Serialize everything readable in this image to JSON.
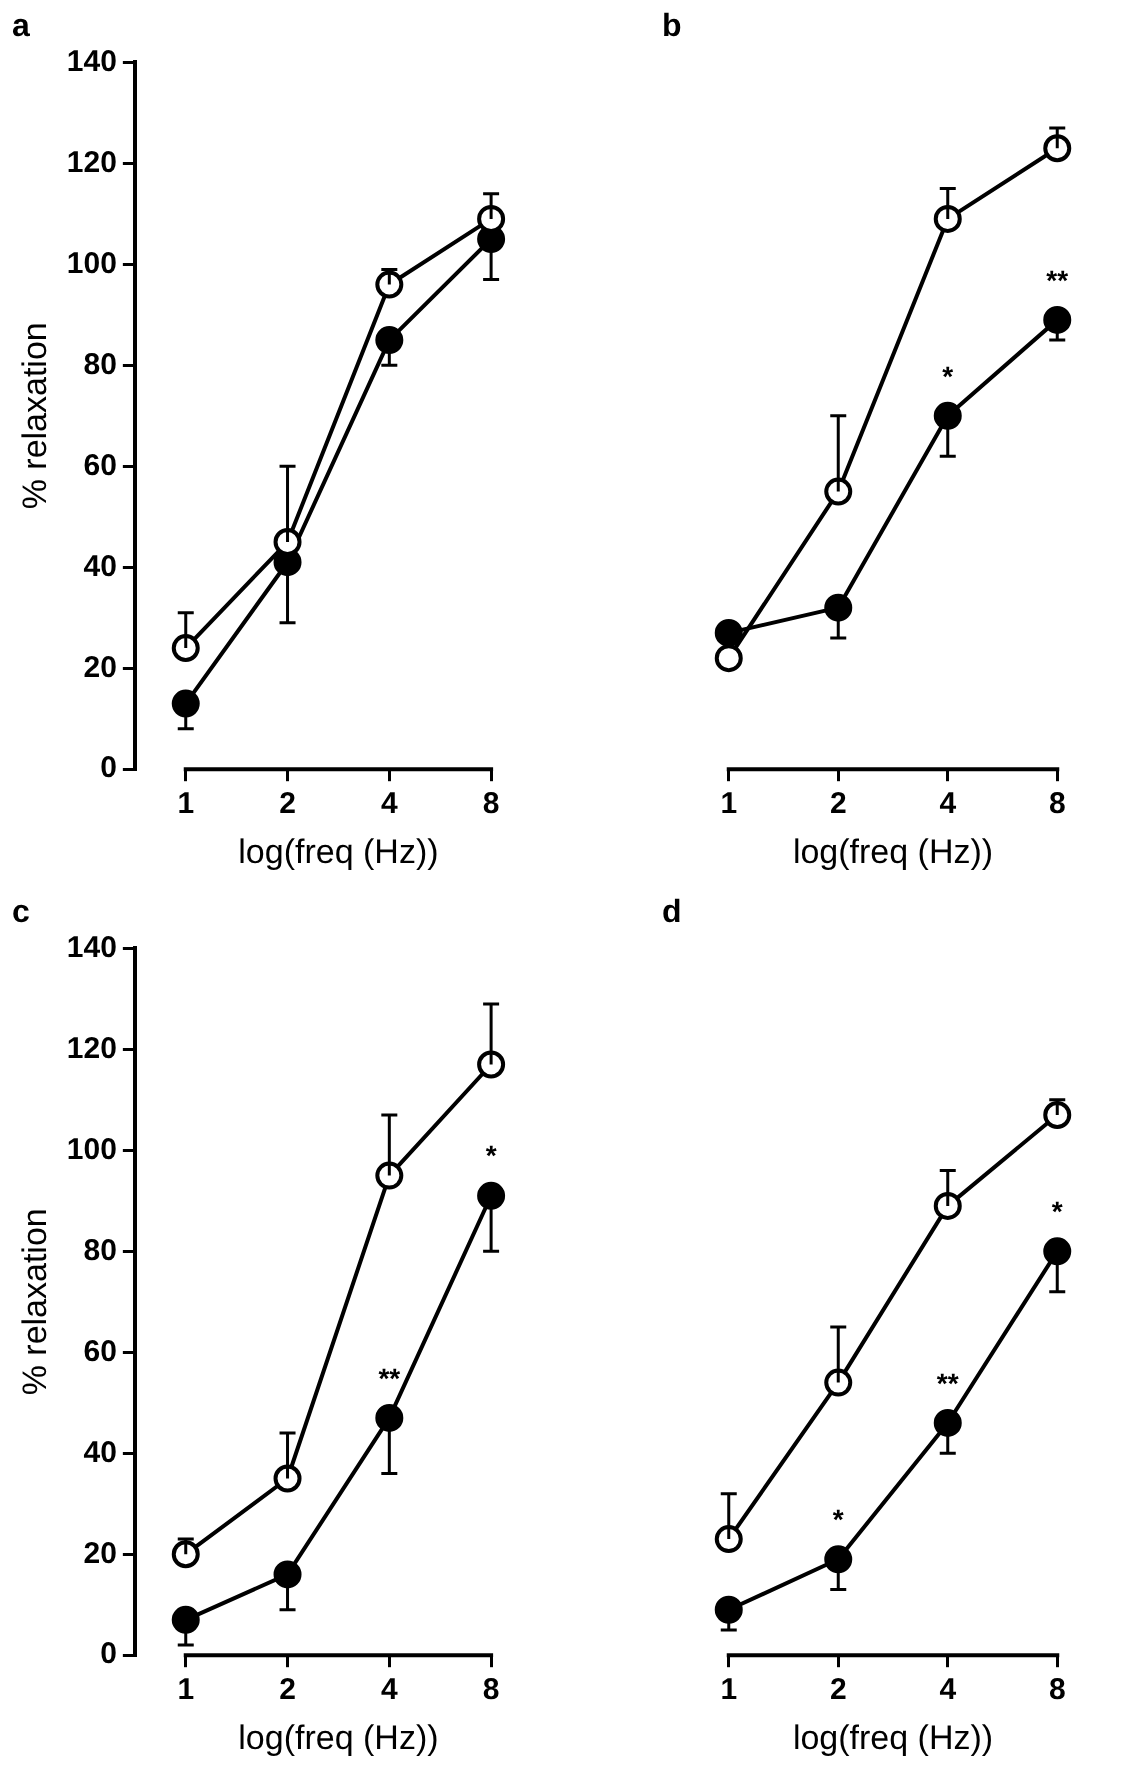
{
  "chart_data": [
    {
      "type": "line",
      "title": "a",
      "xlabel": "log(freq (Hz))",
      "ylabel": "% relaxation",
      "categories": [
        "1",
        "2",
        "4",
        "8"
      ],
      "ylim": [
        0,
        140
      ],
      "yticks": [
        0,
        20,
        40,
        60,
        80,
        100,
        120,
        140
      ],
      "grid": false,
      "legend": false,
      "marker": "circle",
      "line_style": "solid",
      "series": [
        {
          "color": "#ffffff",
          "values": [
            24,
            45,
            96,
            109
          ],
          "errors": [
            [
              24,
              31
            ],
            [
              45,
              60
            ],
            [
              96,
              99
            ],
            [
              109,
              114
            ]
          ]
        },
        {
          "color": "#000000",
          "values": [
            13,
            41,
            85,
            105
          ],
          "errors": [
            [
              8,
              13
            ],
            [
              29,
              41
            ],
            [
              80,
              85
            ],
            [
              97,
              105
            ]
          ]
        }
      ]
    },
    {
      "type": "line",
      "title": "b",
      "xlabel": "log(freq (Hz))",
      "categories": [
        "1",
        "2",
        "4",
        "8"
      ],
      "ylim": [
        0,
        140
      ],
      "yticks": [
        0,
        20,
        40,
        60,
        80,
        100,
        120,
        140
      ],
      "tick_labels": "x",
      "grid": false,
      "legend": false,
      "marker": "circle",
      "line_style": "solid",
      "series": [
        {
          "color": "#ffffff",
          "values": [
            22,
            55,
            109,
            123
          ],
          "errors": [
            null,
            [
              55,
              70
            ],
            [
              109,
              115
            ],
            [
              123,
              127
            ]
          ]
        },
        {
          "color": "#000000",
          "values": [
            27,
            32,
            70,
            89
          ],
          "errors": [
            null,
            [
              26,
              32
            ],
            [
              62,
              70
            ],
            [
              85,
              89
            ]
          ]
        }
      ],
      "annotations": [
        {
          "text": "*",
          "x": "4",
          "y": 70
        },
        {
          "text": "**",
          "x": "8",
          "y": 89
        }
      ]
    },
    {
      "type": "line",
      "title": "c",
      "xlabel": "log(freq (Hz))",
      "ylabel": "% relaxation",
      "categories": [
        "1",
        "2",
        "4",
        "8"
      ],
      "ylim": [
        0,
        140
      ],
      "yticks": [
        0,
        20,
        40,
        60,
        80,
        100,
        120,
        140
      ],
      "grid": false,
      "legend": false,
      "marker": "circle",
      "line_style": "solid",
      "series": [
        {
          "color": "#ffffff",
          "values": [
            20,
            35,
            95,
            117
          ],
          "errors": [
            [
              20,
              23
            ],
            [
              35,
              44
            ],
            [
              95,
              107
            ],
            [
              117,
              129
            ]
          ]
        },
        {
          "color": "#000000",
          "values": [
            7,
            16,
            47,
            91
          ],
          "errors": [
            [
              2,
              7
            ],
            [
              9,
              16
            ],
            [
              36,
              47
            ],
            [
              80,
              91
            ]
          ]
        }
      ],
      "annotations": [
        {
          "text": "**",
          "x": "4",
          "y": 47
        },
        {
          "text": "*",
          "x": "8",
          "y": 91
        }
      ]
    },
    {
      "type": "line",
      "title": "d",
      "xlabel": "log(freq (Hz))",
      "categories": [
        "1",
        "2",
        "4",
        "8"
      ],
      "ylim": [
        0,
        140
      ],
      "yticks": [
        0,
        20,
        40,
        60,
        80,
        100,
        120,
        140
      ],
      "tick_labels": "x",
      "grid": false,
      "legend": false,
      "marker": "circle",
      "line_style": "solid",
      "series": [
        {
          "color": "#ffffff",
          "values": [
            23,
            54,
            89,
            107
          ],
          "errors": [
            [
              23,
              32
            ],
            [
              54,
              65
            ],
            [
              89,
              96
            ],
            [
              107,
              110
            ]
          ]
        },
        {
          "color": "#000000",
          "values": [
            9,
            19,
            46,
            80
          ],
          "errors": [
            [
              5,
              9
            ],
            [
              13,
              19
            ],
            [
              40,
              46
            ],
            [
              72,
              80
            ]
          ]
        }
      ],
      "annotations": [
        {
          "text": "*",
          "x": "2",
          "y": 19
        },
        {
          "text": "**",
          "x": "4",
          "y": 46
        },
        {
          "text": "*",
          "x": "8",
          "y": 80
        }
      ]
    }
  ]
}
